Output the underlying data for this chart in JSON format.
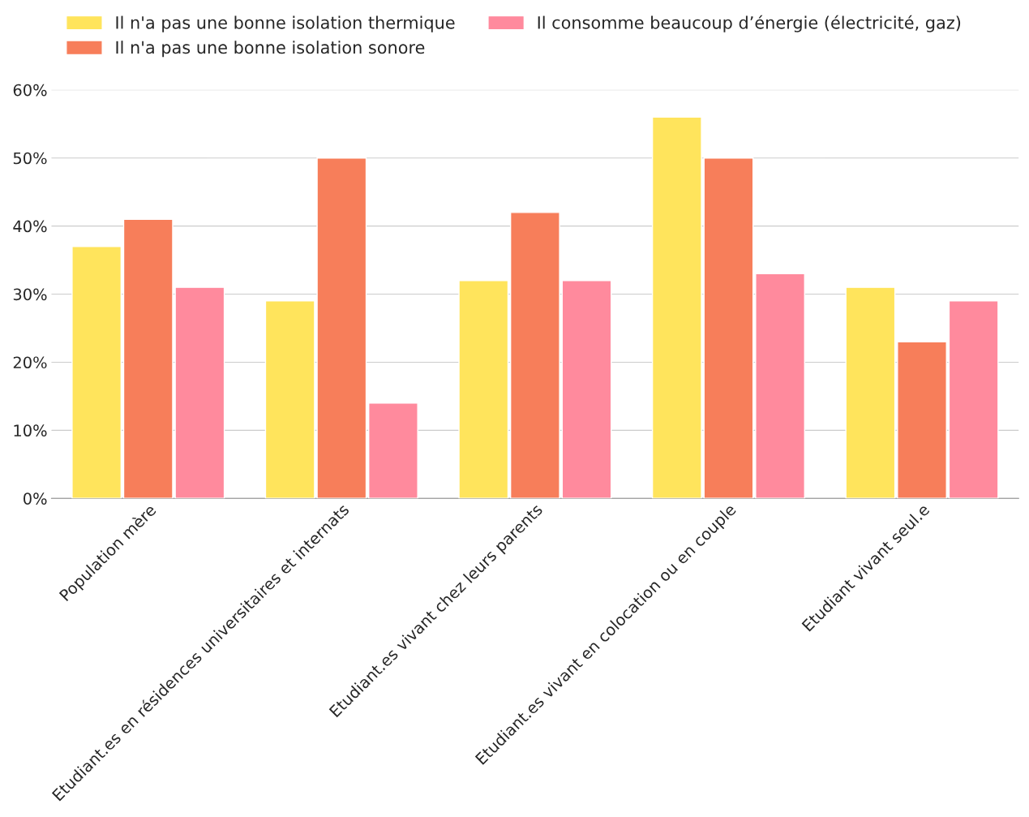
{
  "chart_data": {
    "type": "bar",
    "categories": [
      "Population mère",
      "Etudiant.es en résidences universitaires et internats",
      "Etudiant.es vivant chez leurs parents",
      "Etudiant.es vivant en colocation ou en couple",
      "Etudiant vivant seul.e"
    ],
    "series": [
      {
        "name": "Il n'a pas une bonne isolation thermique",
        "color": "#ffe45c",
        "values": [
          37,
          29,
          32,
          56,
          31
        ]
      },
      {
        "name": "Il n'a pas une bonne isolation sonore",
        "color": "#f77e5a",
        "values": [
          41,
          50,
          42,
          50,
          23
        ]
      },
      {
        "name": "Il consomme beaucoup d’énergie (électricité, gaz)",
        "color": "#ff8a9d",
        "values": [
          31,
          14,
          32,
          33,
          29
        ]
      }
    ],
    "ylim": [
      0,
      60
    ],
    "yticks": [
      {
        "value": 0,
        "label": "0%"
      },
      {
        "value": 10,
        "label": "10%"
      },
      {
        "value": 20,
        "label": "20%"
      },
      {
        "value": 30,
        "label": "30%"
      },
      {
        "value": 40,
        "label": "40%"
      },
      {
        "value": 50,
        "label": "50%"
      },
      {
        "value": 60,
        "label": "60%"
      }
    ],
    "grid": "y",
    "legend": "top"
  }
}
